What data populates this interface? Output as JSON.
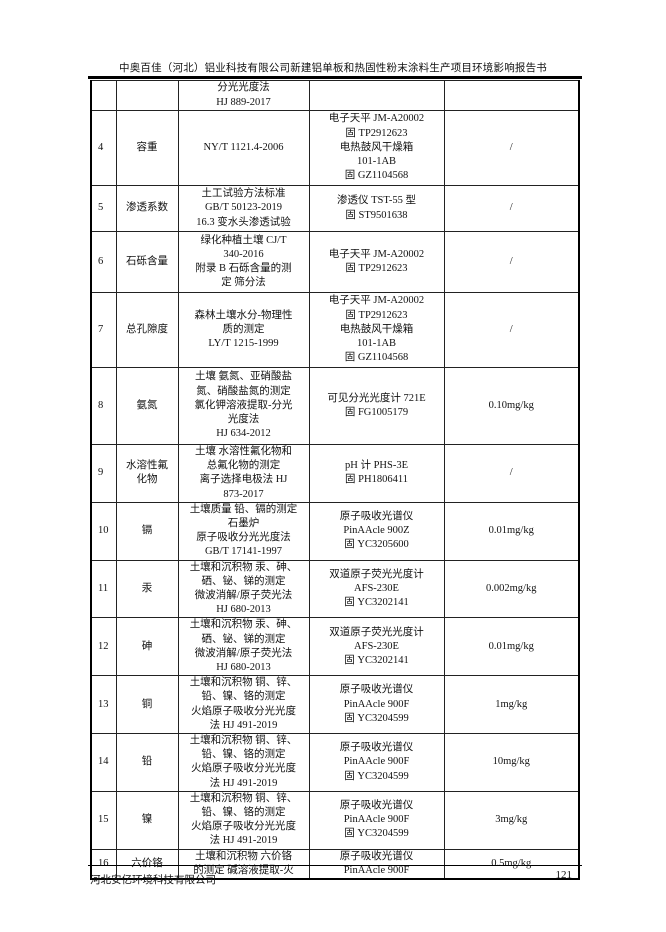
{
  "header": {
    "title": "中奥百佳（河北）铝业科技有限公司新建铝单板和热固性粉末涂料生产项目环境影响报告书"
  },
  "table": {
    "rows": [
      {
        "no": "",
        "item": [],
        "method": [
          "分光光度法",
          "HJ 889-2017"
        ],
        "instrument": [],
        "limit": ""
      },
      {
        "no": "4",
        "item": [
          "容重"
        ],
        "method": [
          "NY/T 1121.4-2006"
        ],
        "instrument": [
          "电子天平 JM-A20002",
          "固 TP2912623",
          "电热鼓风干燥箱",
          "101-1AB",
          "固 GZ1104568"
        ],
        "limit": "/"
      },
      {
        "no": "5",
        "item": [
          "渗透系数"
        ],
        "method": [
          "土工试验方法标准",
          "GB/T 50123-2019",
          "16.3  变水头渗透试验"
        ],
        "instrument": [
          "渗透仪 TST-55 型",
          "固 ST9501638"
        ],
        "limit": "/"
      },
      {
        "no": "6",
        "item": [
          "石砾含量"
        ],
        "method": [
          "绿化种植土壤  CJ/T",
          "340-2016",
          "附录 B   石砾含量的测",
          "定  筛分法"
        ],
        "instrument": [
          "电子天平 JM-A20002",
          "固 TP2912623"
        ],
        "limit": "/"
      },
      {
        "no": "7",
        "item": [
          "总孔隙度"
        ],
        "method": [
          "森林土壤水分-物理性",
          "质的测定",
          "LY/T 1215-1999"
        ],
        "instrument": [
          "电子天平 JM-A20002",
          "固 TP2912623",
          "电热鼓风干燥箱",
          "101-1AB",
          "固 GZ1104568"
        ],
        "limit": "/"
      },
      {
        "no": "8",
        "item": [
          "氨氮"
        ],
        "method": [
          "土壤  氨氮、亚硝酸盐",
          "氮、硝酸盐氮的测定",
          "氯化钾溶液提取-分光",
          "光度法",
          "HJ 634-2012"
        ],
        "instrument": [
          "可见分光光度计 721E",
          "固 FG1005179"
        ],
        "limit": "0.10mg/kg"
      },
      {
        "no": "9",
        "item": [
          "水溶性氟",
          "化物"
        ],
        "method": [
          "土壤  水溶性氟化物和",
          "总氟化物的测定",
          "离子选择电极法  HJ",
          "873-2017"
        ],
        "instrument": [
          "pH 计 PHS-3E",
          "固 PH1806411"
        ],
        "limit": "/"
      },
      {
        "no": "10",
        "item": [
          "镉"
        ],
        "method": [
          "土壤质量  铅、镉的测定",
          "石墨炉",
          "原子吸收分光光度法",
          "GB/T 17141-1997"
        ],
        "instrument": [
          "原子吸收光谱仪",
          "PinAAcle 900Z",
          "固 YC3205600"
        ],
        "limit": "0.01mg/kg"
      },
      {
        "no": "11",
        "item": [
          "汞"
        ],
        "method": [
          "土壤和沉积物  汞、砷、",
          "硒、铋、锑的测定",
          "微波消解/原子荧光法",
          "HJ 680-2013"
        ],
        "instrument": [
          "双道原子荧光光度计",
          "AFS-230E",
          "固 YC3202141"
        ],
        "limit": "0.002mg/kg"
      },
      {
        "no": "12",
        "item": [
          "砷"
        ],
        "method": [
          "土壤和沉积物  汞、砷、",
          "硒、铋、锑的测定",
          "微波消解/原子荧光法",
          "HJ 680-2013"
        ],
        "instrument": [
          "双道原子荧光光度计",
          "AFS-230E",
          "固 YC3202141"
        ],
        "limit": "0.01mg/kg"
      },
      {
        "no": "13",
        "item": [
          "铜"
        ],
        "method": [
          "土壤和沉积物  铜、锌、",
          "铅、镍、铬的测定",
          "火焰原子吸收分光光度",
          "法  HJ 491-2019"
        ],
        "instrument": [
          "原子吸收光谱仪",
          "PinAAcle 900F",
          "固 YC3204599"
        ],
        "limit": "1mg/kg"
      },
      {
        "no": "14",
        "item": [
          "铅"
        ],
        "method": [
          "土壤和沉积物  铜、锌、",
          "铅、镍、铬的测定",
          "火焰原子吸收分光光度",
          "法  HJ 491-2019"
        ],
        "instrument": [
          "原子吸收光谱仪",
          "PinAAcle 900F",
          "固 YC3204599"
        ],
        "limit": "10mg/kg"
      },
      {
        "no": "15",
        "item": [
          "镍"
        ],
        "method": [
          "土壤和沉积物  铜、锌、",
          "铅、镍、铬的测定",
          "火焰原子吸收分光光度",
          "法  HJ 491-2019"
        ],
        "instrument": [
          "原子吸收光谱仪",
          "PinAAcle 900F",
          "固 YC3204599"
        ],
        "limit": "3mg/kg"
      },
      {
        "no": "16",
        "item": [
          "六价铬"
        ],
        "method": [
          "土壤和沉积物  六价铬",
          "的测定  碱溶液提取-火"
        ],
        "instrument": [
          "原子吸收光谱仪",
          "PinAAcle 900F"
        ],
        "limit": "0.5mg/kg"
      }
    ]
  },
  "footer": {
    "company": "河北安亿环境科技有限公司",
    "page": "121"
  }
}
